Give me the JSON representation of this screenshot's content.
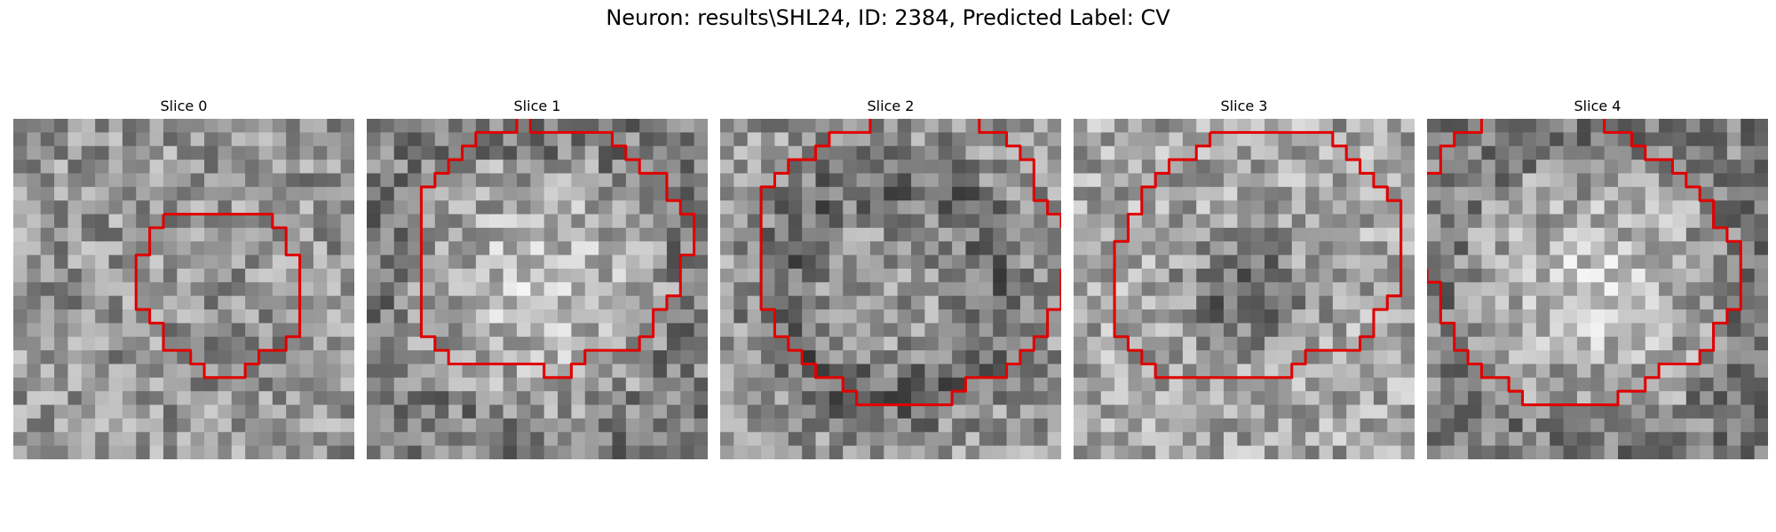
{
  "figure": {
    "title": "Neuron: results\\SHL24, ID: 2384, Predicted Label: CV",
    "contour_color": "#e00000"
  },
  "panels": [
    {
      "title": "Slice 0",
      "seed": 11,
      "pattern": "uniform",
      "contours": [
        [
          [
            11,
            7
          ],
          [
            19,
            7
          ],
          [
            19,
            8
          ],
          [
            20,
            8
          ],
          [
            20,
            10
          ],
          [
            21,
            10
          ],
          [
            21,
            16
          ],
          [
            20,
            16
          ],
          [
            20,
            17
          ],
          [
            18,
            17
          ],
          [
            18,
            18
          ],
          [
            17,
            18
          ],
          [
            17,
            19
          ],
          [
            14,
            19
          ],
          [
            14,
            18
          ],
          [
            13,
            18
          ],
          [
            13,
            17
          ],
          [
            11,
            17
          ],
          [
            11,
            15
          ],
          [
            10,
            15
          ],
          [
            10,
            14
          ],
          [
            9,
            14
          ],
          [
            9,
            10
          ],
          [
            10,
            10
          ],
          [
            10,
            8
          ],
          [
            11,
            8
          ],
          [
            11,
            7
          ]
        ]
      ]
    },
    {
      "title": "Slice 1",
      "seed": 23,
      "pattern": "bright-center",
      "contours": [
        [
          [
            11,
            0
          ],
          [
            11,
            1
          ],
          [
            8,
            1
          ],
          [
            8,
            2
          ],
          [
            7,
            2
          ],
          [
            7,
            3
          ],
          [
            6,
            3
          ],
          [
            6,
            4
          ],
          [
            5,
            4
          ],
          [
            5,
            5
          ],
          [
            4,
            5
          ],
          [
            4,
            16
          ],
          [
            5,
            16
          ],
          [
            5,
            17
          ],
          [
            6,
            17
          ],
          [
            6,
            18
          ],
          [
            13,
            18
          ],
          [
            13,
            19
          ],
          [
            15,
            19
          ],
          [
            15,
            18
          ],
          [
            16,
            18
          ],
          [
            16,
            17
          ],
          [
            20,
            17
          ],
          [
            20,
            16
          ],
          [
            21,
            16
          ],
          [
            21,
            14
          ],
          [
            22,
            14
          ],
          [
            22,
            13
          ],
          [
            23,
            13
          ],
          [
            23,
            10
          ],
          [
            24,
            10
          ],
          [
            24,
            7
          ],
          [
            23,
            7
          ],
          [
            23,
            6
          ],
          [
            22,
            6
          ],
          [
            22,
            4
          ],
          [
            20,
            4
          ],
          [
            20,
            3
          ],
          [
            19,
            3
          ],
          [
            19,
            2
          ],
          [
            18,
            2
          ],
          [
            18,
            1
          ],
          [
            12,
            1
          ],
          [
            12,
            0
          ]
        ]
      ]
    },
    {
      "title": "Slice 2",
      "seed": 37,
      "pattern": "dark-ring",
      "contours": [
        [
          [
            11,
            0
          ],
          [
            11,
            1
          ],
          [
            8,
            1
          ],
          [
            8,
            2
          ],
          [
            7,
            2
          ],
          [
            7,
            3
          ],
          [
            5,
            3
          ],
          [
            5,
            4
          ],
          [
            4,
            4
          ],
          [
            4,
            5
          ],
          [
            3,
            5
          ],
          [
            3,
            14
          ],
          [
            4,
            14
          ],
          [
            4,
            16
          ],
          [
            5,
            16
          ],
          [
            5,
            17
          ],
          [
            6,
            17
          ],
          [
            6,
            18
          ],
          [
            7,
            18
          ],
          [
            7,
            19
          ],
          [
            9,
            19
          ],
          [
            9,
            20
          ],
          [
            10,
            20
          ],
          [
            10,
            21
          ],
          [
            17,
            21
          ],
          [
            17,
            20
          ],
          [
            18,
            20
          ],
          [
            18,
            19
          ],
          [
            21,
            19
          ],
          [
            21,
            18
          ],
          [
            22,
            18
          ],
          [
            22,
            17
          ],
          [
            23,
            17
          ],
          [
            23,
            16
          ],
          [
            24,
            16
          ],
          [
            24,
            14
          ],
          [
            25,
            14
          ],
          [
            25,
            11
          ]
        ],
        [
          [
            19,
            0
          ],
          [
            19,
            1
          ],
          [
            21,
            1
          ],
          [
            21,
            2
          ],
          [
            22,
            2
          ],
          [
            22,
            3
          ],
          [
            23,
            3
          ],
          [
            23,
            6
          ],
          [
            24,
            6
          ],
          [
            24,
            7
          ],
          [
            25,
            7
          ],
          [
            25,
            8
          ]
        ]
      ]
    },
    {
      "title": "Slice 3",
      "seed": 41,
      "pattern": "dark-center",
      "contours": [
        [
          [
            10,
            1
          ],
          [
            19,
            1
          ],
          [
            19,
            2
          ],
          [
            20,
            2
          ],
          [
            20,
            3
          ],
          [
            21,
            3
          ],
          [
            21,
            4
          ],
          [
            22,
            4
          ],
          [
            22,
            5
          ],
          [
            23,
            5
          ],
          [
            23,
            6
          ],
          [
            24,
            6
          ],
          [
            24,
            13
          ],
          [
            23,
            13
          ],
          [
            23,
            14
          ],
          [
            22,
            14
          ],
          [
            22,
            16
          ],
          [
            21,
            16
          ],
          [
            21,
            17
          ],
          [
            17,
            17
          ],
          [
            17,
            18
          ],
          [
            16,
            18
          ],
          [
            16,
            19
          ],
          [
            6,
            19
          ],
          [
            6,
            18
          ],
          [
            5,
            18
          ],
          [
            5,
            17
          ],
          [
            4,
            17
          ],
          [
            4,
            16
          ],
          [
            3,
            16
          ],
          [
            3,
            9
          ],
          [
            4,
            9
          ],
          [
            4,
            7
          ],
          [
            5,
            7
          ],
          [
            5,
            5
          ],
          [
            6,
            5
          ],
          [
            6,
            4
          ],
          [
            7,
            4
          ],
          [
            7,
            3
          ],
          [
            9,
            3
          ],
          [
            9,
            2
          ],
          [
            10,
            2
          ],
          [
            10,
            1
          ]
        ]
      ]
    },
    {
      "title": "Slice 4",
      "seed": 53,
      "pattern": "bright-center",
      "contours": [
        [
          [
            13,
            0
          ],
          [
            13,
            1
          ],
          [
            15,
            1
          ],
          [
            15,
            2
          ],
          [
            16,
            2
          ],
          [
            16,
            3
          ],
          [
            18,
            3
          ],
          [
            18,
            4
          ],
          [
            19,
            4
          ],
          [
            19,
            5
          ],
          [
            20,
            5
          ],
          [
            20,
            6
          ],
          [
            21,
            6
          ],
          [
            21,
            8
          ],
          [
            22,
            8
          ],
          [
            22,
            9
          ],
          [
            23,
            9
          ],
          [
            23,
            14
          ],
          [
            22,
            14
          ],
          [
            22,
            15
          ],
          [
            21,
            15
          ],
          [
            21,
            17
          ],
          [
            20,
            17
          ],
          [
            20,
            18
          ],
          [
            17,
            18
          ],
          [
            17,
            19
          ],
          [
            16,
            19
          ],
          [
            16,
            20
          ],
          [
            14,
            20
          ],
          [
            14,
            21
          ],
          [
            7,
            21
          ],
          [
            7,
            20
          ],
          [
            6,
            20
          ],
          [
            6,
            19
          ],
          [
            4,
            19
          ],
          [
            4,
            18
          ],
          [
            3,
            18
          ],
          [
            3,
            17
          ],
          [
            2,
            17
          ],
          [
            2,
            15
          ],
          [
            1,
            15
          ],
          [
            1,
            12
          ],
          [
            0,
            12
          ],
          [
            0,
            11
          ]
        ],
        [
          [
            4,
            0
          ],
          [
            4,
            1
          ],
          [
            2,
            1
          ],
          [
            2,
            2
          ],
          [
            1,
            2
          ],
          [
            1,
            4
          ],
          [
            0,
            4
          ]
        ]
      ]
    }
  ]
}
